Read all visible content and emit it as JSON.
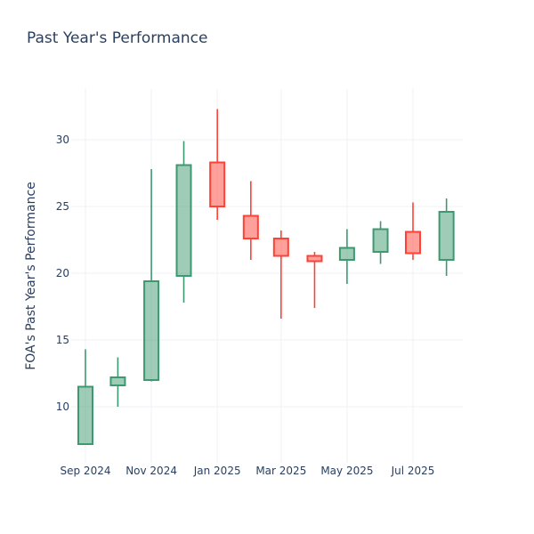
{
  "chart_data": {
    "type": "candlestick",
    "title": "Past Year's Performance",
    "xlabel": "",
    "ylabel": "FOA's Past Year's Performance",
    "ylim": [
      6,
      33.8
    ],
    "yticks": [
      10,
      15,
      20,
      25,
      30
    ],
    "xticks": [
      {
        "label": "Sep 2024",
        "date": "2024-09-01"
      },
      {
        "label": "Nov 2024",
        "date": "2024-11-01"
      },
      {
        "label": "Jan 2025",
        "date": "2025-01-01"
      },
      {
        "label": "Mar 2025",
        "date": "2025-03-01"
      },
      {
        "label": "May 2025",
        "date": "2025-05-01"
      },
      {
        "label": "Jul 2025",
        "date": "2025-07-01"
      }
    ],
    "grid": true,
    "colors": {
      "increasing": "#3d9970",
      "decreasing": "#ff4136"
    },
    "candles": [
      {
        "date": "2024-09-01",
        "open": 7.2,
        "high": 14.3,
        "low": 7.2,
        "close": 11.5
      },
      {
        "date": "2024-10-01",
        "open": 11.6,
        "high": 13.7,
        "low": 10.0,
        "close": 12.2
      },
      {
        "date": "2024-11-01",
        "open": 12.0,
        "high": 27.8,
        "low": 11.9,
        "close": 19.4
      },
      {
        "date": "2024-12-01",
        "open": 19.8,
        "high": 29.9,
        "low": 17.8,
        "close": 28.1
      },
      {
        "date": "2025-01-01",
        "open": 28.3,
        "high": 32.3,
        "low": 24.0,
        "close": 25.0
      },
      {
        "date": "2025-02-01",
        "open": 24.3,
        "high": 26.9,
        "low": 21.0,
        "close": 22.6
      },
      {
        "date": "2025-03-01",
        "open": 22.6,
        "high": 23.2,
        "low": 16.6,
        "close": 21.3
      },
      {
        "date": "2025-04-01",
        "open": 21.3,
        "high": 21.6,
        "low": 17.4,
        "close": 20.9
      },
      {
        "date": "2025-05-01",
        "open": 21.0,
        "high": 23.3,
        "low": 19.2,
        "close": 21.9
      },
      {
        "date": "2025-06-01",
        "open": 21.6,
        "high": 23.9,
        "low": 20.7,
        "close": 23.3
      },
      {
        "date": "2025-07-01",
        "open": 23.1,
        "high": 25.3,
        "low": 21.0,
        "close": 21.5
      },
      {
        "date": "2025-08-01",
        "open": 21.0,
        "high": 25.6,
        "low": 19.8,
        "close": 24.6
      }
    ]
  }
}
